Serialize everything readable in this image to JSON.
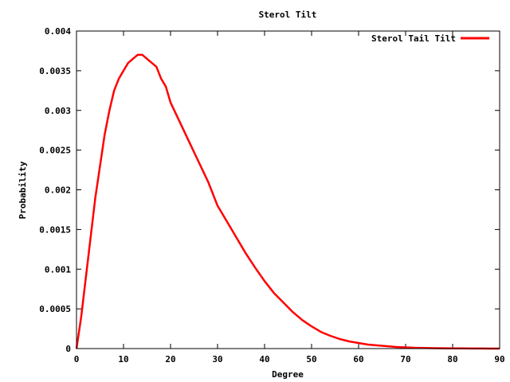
{
  "chart_data": {
    "type": "line",
    "title": "Sterol Tilt",
    "xlabel": "Degree",
    "ylabel": "Probability",
    "xlim": [
      0,
      90
    ],
    "ylim": [
      0,
      0.004
    ],
    "x_ticks": [
      0,
      10,
      20,
      30,
      40,
      50,
      60,
      70,
      80,
      90
    ],
    "x_tick_labels": [
      "0",
      "10",
      "20",
      "30",
      "40",
      "50",
      "60",
      "70",
      "80",
      "90"
    ],
    "y_ticks": [
      0,
      0.0005,
      0.001,
      0.0015,
      0.002,
      0.0025,
      0.003,
      0.0035,
      0.004
    ],
    "y_tick_labels": [
      "0",
      "0.0005",
      "0.001",
      "0.0015",
      "0.002",
      "0.0025",
      "0.003",
      "0.0035",
      "0.004"
    ],
    "grid": false,
    "legend_position": "top-right",
    "series": [
      {
        "name": "Sterol Tail Tilt",
        "color": "#ff0000",
        "x": [
          0,
          1,
          2,
          3,
          4,
          5,
          6,
          7,
          8,
          9,
          10,
          11,
          12,
          13,
          14,
          15,
          16,
          17,
          18,
          19,
          20,
          22,
          24,
          26,
          28,
          30,
          32,
          34,
          36,
          38,
          40,
          42,
          44,
          46,
          48,
          50,
          52,
          54,
          56,
          58,
          60,
          62,
          64,
          66,
          68,
          70,
          72,
          74,
          76,
          78,
          80,
          82,
          84,
          86,
          88,
          90
        ],
        "values": [
          0.0,
          0.0004,
          0.0009,
          0.0014,
          0.0019,
          0.0023,
          0.0027,
          0.003,
          0.00325,
          0.0034,
          0.0035,
          0.0036,
          0.00365,
          0.0037,
          0.0037,
          0.00365,
          0.0036,
          0.00355,
          0.0034,
          0.0033,
          0.0031,
          0.00285,
          0.0026,
          0.00235,
          0.0021,
          0.0018,
          0.0016,
          0.0014,
          0.0012,
          0.00102,
          0.00085,
          0.0007,
          0.00058,
          0.00046,
          0.00036,
          0.00028,
          0.00021,
          0.00016,
          0.00012,
          9e-05,
          7e-05,
          5e-05,
          4e-05,
          3e-05,
          2e-05,
          1.5e-05,
          1e-05,
          8e-06,
          5e-06,
          4e-06,
          3e-06,
          2e-06,
          1e-06,
          1e-06,
          5e-07,
          0.0
        ]
      }
    ]
  }
}
